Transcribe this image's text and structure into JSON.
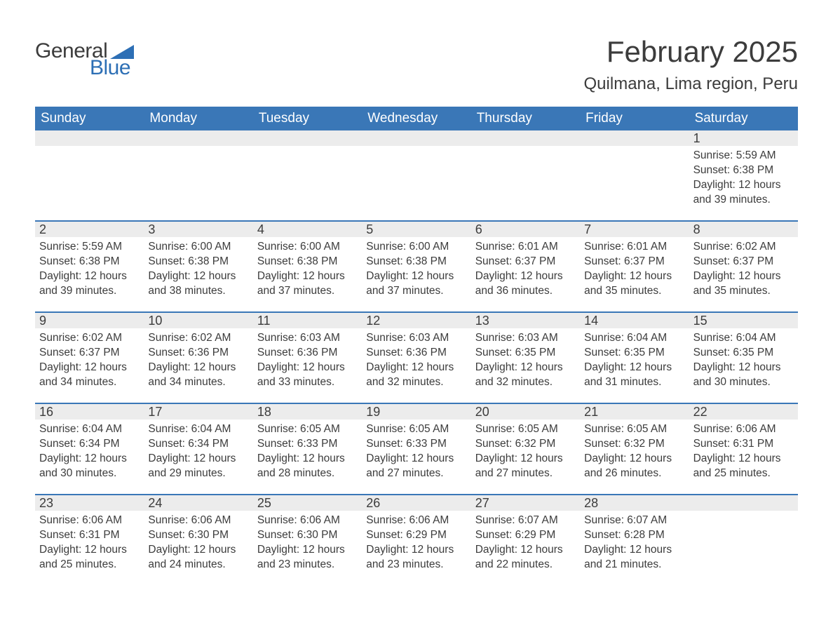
{
  "logo": {
    "general": "General",
    "blue": "Blue",
    "flag_color": "#2d6fb5"
  },
  "title": {
    "month": "February 2025",
    "location": "Quilmana, Lima region, Peru"
  },
  "colors": {
    "header_bg": "#3a77b7",
    "header_text": "#ffffff",
    "daynum_bg": "#ececec",
    "text": "#3c3c3c",
    "week_border": "#3a77b7",
    "logo_blue": "#2d6fb5"
  },
  "typography": {
    "title_fontsize": 42,
    "subtitle_fontsize": 24,
    "header_cell_fontsize": 19,
    "daynum_fontsize": 18,
    "body_fontsize": 15.5,
    "logo_fontsize": 30
  },
  "layout": {
    "columns": 7,
    "rows": 5
  },
  "labels": {
    "sunrise_prefix": "Sunrise: ",
    "sunset_prefix": "Sunset: ",
    "daylight_prefix": "Daylight: "
  },
  "weekdays": [
    "Sunday",
    "Monday",
    "Tuesday",
    "Wednesday",
    "Thursday",
    "Friday",
    "Saturday"
  ],
  "weeks": [
    [
      null,
      null,
      null,
      null,
      null,
      null,
      {
        "n": 1,
        "sunrise": "5:59 AM",
        "sunset": "6:38 PM",
        "daylight": "12 hours and 39 minutes."
      }
    ],
    [
      {
        "n": 2,
        "sunrise": "5:59 AM",
        "sunset": "6:38 PM",
        "daylight": "12 hours and 39 minutes."
      },
      {
        "n": 3,
        "sunrise": "6:00 AM",
        "sunset": "6:38 PM",
        "daylight": "12 hours and 38 minutes."
      },
      {
        "n": 4,
        "sunrise": "6:00 AM",
        "sunset": "6:38 PM",
        "daylight": "12 hours and 37 minutes."
      },
      {
        "n": 5,
        "sunrise": "6:00 AM",
        "sunset": "6:38 PM",
        "daylight": "12 hours and 37 minutes."
      },
      {
        "n": 6,
        "sunrise": "6:01 AM",
        "sunset": "6:37 PM",
        "daylight": "12 hours and 36 minutes."
      },
      {
        "n": 7,
        "sunrise": "6:01 AM",
        "sunset": "6:37 PM",
        "daylight": "12 hours and 35 minutes."
      },
      {
        "n": 8,
        "sunrise": "6:02 AM",
        "sunset": "6:37 PM",
        "daylight": "12 hours and 35 minutes."
      }
    ],
    [
      {
        "n": 9,
        "sunrise": "6:02 AM",
        "sunset": "6:37 PM",
        "daylight": "12 hours and 34 minutes."
      },
      {
        "n": 10,
        "sunrise": "6:02 AM",
        "sunset": "6:36 PM",
        "daylight": "12 hours and 34 minutes."
      },
      {
        "n": 11,
        "sunrise": "6:03 AM",
        "sunset": "6:36 PM",
        "daylight": "12 hours and 33 minutes."
      },
      {
        "n": 12,
        "sunrise": "6:03 AM",
        "sunset": "6:36 PM",
        "daylight": "12 hours and 32 minutes."
      },
      {
        "n": 13,
        "sunrise": "6:03 AM",
        "sunset": "6:35 PM",
        "daylight": "12 hours and 32 minutes."
      },
      {
        "n": 14,
        "sunrise": "6:04 AM",
        "sunset": "6:35 PM",
        "daylight": "12 hours and 31 minutes."
      },
      {
        "n": 15,
        "sunrise": "6:04 AM",
        "sunset": "6:35 PM",
        "daylight": "12 hours and 30 minutes."
      }
    ],
    [
      {
        "n": 16,
        "sunrise": "6:04 AM",
        "sunset": "6:34 PM",
        "daylight": "12 hours and 30 minutes."
      },
      {
        "n": 17,
        "sunrise": "6:04 AM",
        "sunset": "6:34 PM",
        "daylight": "12 hours and 29 minutes."
      },
      {
        "n": 18,
        "sunrise": "6:05 AM",
        "sunset": "6:33 PM",
        "daylight": "12 hours and 28 minutes."
      },
      {
        "n": 19,
        "sunrise": "6:05 AM",
        "sunset": "6:33 PM",
        "daylight": "12 hours and 27 minutes."
      },
      {
        "n": 20,
        "sunrise": "6:05 AM",
        "sunset": "6:32 PM",
        "daylight": "12 hours and 27 minutes."
      },
      {
        "n": 21,
        "sunrise": "6:05 AM",
        "sunset": "6:32 PM",
        "daylight": "12 hours and 26 minutes."
      },
      {
        "n": 22,
        "sunrise": "6:06 AM",
        "sunset": "6:31 PM",
        "daylight": "12 hours and 25 minutes."
      }
    ],
    [
      {
        "n": 23,
        "sunrise": "6:06 AM",
        "sunset": "6:31 PM",
        "daylight": "12 hours and 25 minutes."
      },
      {
        "n": 24,
        "sunrise": "6:06 AM",
        "sunset": "6:30 PM",
        "daylight": "12 hours and 24 minutes."
      },
      {
        "n": 25,
        "sunrise": "6:06 AM",
        "sunset": "6:30 PM",
        "daylight": "12 hours and 23 minutes."
      },
      {
        "n": 26,
        "sunrise": "6:06 AM",
        "sunset": "6:29 PM",
        "daylight": "12 hours and 23 minutes."
      },
      {
        "n": 27,
        "sunrise": "6:07 AM",
        "sunset": "6:29 PM",
        "daylight": "12 hours and 22 minutes."
      },
      {
        "n": 28,
        "sunrise": "6:07 AM",
        "sunset": "6:28 PM",
        "daylight": "12 hours and 21 minutes."
      },
      null
    ]
  ]
}
